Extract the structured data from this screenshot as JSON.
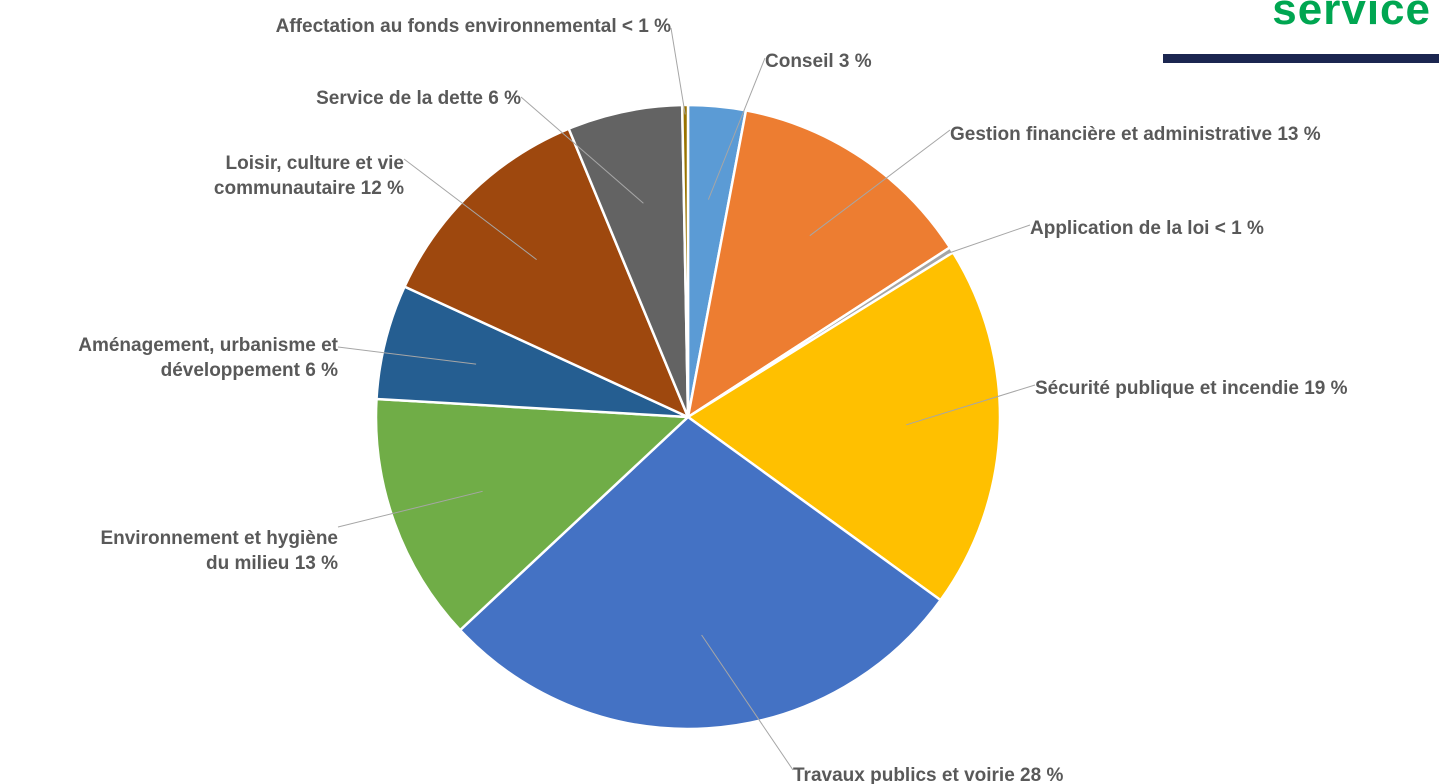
{
  "header": {
    "title_fragment": "service",
    "accent_color": "#00a651",
    "bar_color": "#1b2650"
  },
  "chart_data": {
    "type": "pie",
    "slices": [
      {
        "label_lines": [
          "Conseil 3 %"
        ],
        "value": 3,
        "color": "#5b9bd5"
      },
      {
        "label_lines": [
          "Gestion financière et administrative 13 %"
        ],
        "value": 13,
        "color": "#ed7d31"
      },
      {
        "label_lines": [
          "Application de la loi < 1 %"
        ],
        "value": 0.3,
        "color": "#a5a5a5"
      },
      {
        "label_lines": [
          "Sécurité publique et incendie 19 %"
        ],
        "value": 19,
        "color": "#ffc000"
      },
      {
        "label_lines": [
          "Travaux publics et voirie 28 %"
        ],
        "value": 28.3,
        "color": "#4472c4"
      },
      {
        "label_lines": [
          "Environnement et hygiène",
          "du milieu 13 %"
        ],
        "value": 13,
        "color": "#70ad47"
      },
      {
        "label_lines": [
          "Aménagement, urbanisme et",
          "développement 6 %"
        ],
        "value": 6,
        "color": "#255e91"
      },
      {
        "label_lines": [
          "Loisir, culture et vie",
          "communautaire 12 %"
        ],
        "value": 12,
        "color": "#9e480e"
      },
      {
        "label_lines": [
          "Service de la dette 6 %"
        ],
        "value": 6,
        "color": "#636363"
      },
      {
        "label_lines": [
          "Affectation au fonds environnemental < 1 %"
        ],
        "value": 0.3,
        "color": "#997300"
      }
    ]
  }
}
